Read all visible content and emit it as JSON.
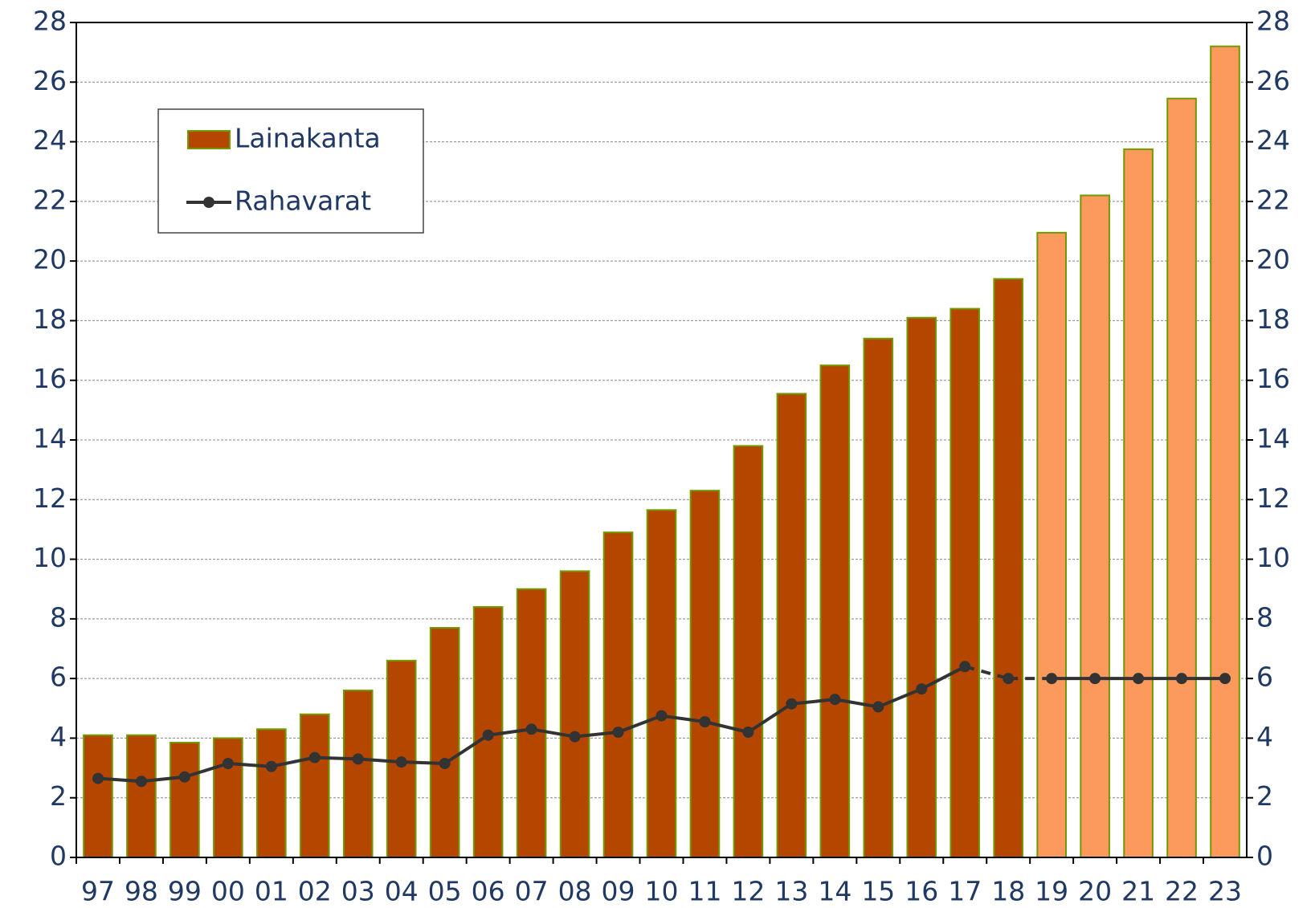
{
  "chart_data": {
    "type": "bar_line",
    "categories": [
      "97",
      "98",
      "99",
      "00",
      "01",
      "02",
      "03",
      "04",
      "05",
      "06",
      "07",
      "08",
      "09",
      "10",
      "11",
      "12",
      "13",
      "14",
      "15",
      "16",
      "17",
      "18",
      "19",
      "20",
      "21",
      "22",
      "23"
    ],
    "series": [
      {
        "name": "Lainakanta",
        "type": "bar",
        "color": "#b54600",
        "edge_color": "#6f9a00",
        "colors": [
          "#b54600",
          "#b54600",
          "#b54600",
          "#b54600",
          "#b54600",
          "#b54600",
          "#b54600",
          "#b54600",
          "#b54600",
          "#b54600",
          "#b54600",
          "#b54600",
          "#b54600",
          "#b54600",
          "#b54600",
          "#b54600",
          "#b54600",
          "#b54600",
          "#b54600",
          "#b54600",
          "#b54600",
          "#b54600",
          "#fb9a5c",
          "#fb9a5c",
          "#fb9a5c",
          "#fb9a5c",
          "#fb9a5c"
        ],
        "values": [
          4.1,
          4.1,
          3.85,
          4.0,
          4.3,
          4.8,
          5.6,
          6.6,
          7.7,
          8.4,
          9.0,
          9.6,
          10.9,
          11.65,
          12.3,
          13.8,
          15.55,
          16.5,
          17.4,
          18.1,
          18.4,
          19.4,
          20.95,
          22.2,
          23.75,
          25.45,
          27.2
        ]
      },
      {
        "name": "Rahavarat",
        "type": "line",
        "color": "#333333",
        "dashed_between": [
          20,
          22
        ],
        "values": [
          2.65,
          2.55,
          2.7,
          3.15,
          3.05,
          3.35,
          3.3,
          3.2,
          3.15,
          4.1,
          4.3,
          4.05,
          4.2,
          4.75,
          4.55,
          4.2,
          5.15,
          5.3,
          5.05,
          5.65,
          6.4,
          6.0,
          6.0,
          6.0,
          6.0,
          6.0,
          6.0
        ]
      }
    ],
    "ylim": [
      0,
      28
    ],
    "yticks": [
      0,
      2,
      4,
      6,
      8,
      10,
      12,
      14,
      16,
      18,
      20,
      22,
      24,
      26,
      28
    ],
    "y2lim": [
      0,
      28
    ],
    "y2ticks": [
      0,
      2,
      4,
      6,
      8,
      10,
      12,
      14,
      16,
      18,
      20,
      22,
      24,
      26,
      28
    ],
    "grid": true,
    "legend": "upper left"
  }
}
